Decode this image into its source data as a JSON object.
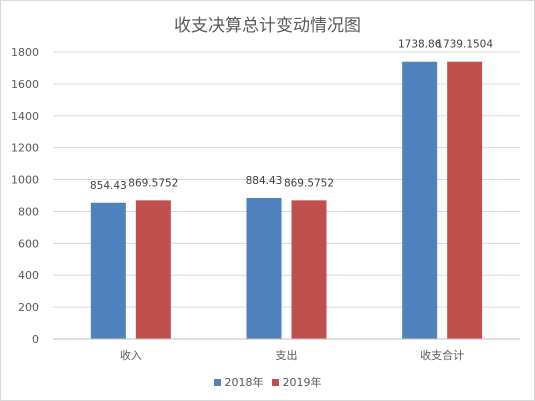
{
  "chart_data": {
    "type": "bar",
    "title": "收支决算总计变动情况图",
    "categories": [
      "收入",
      "支出",
      "收支合计"
    ],
    "series": [
      {
        "name": "2018年",
        "color": "#4F81BD",
        "values": [
          854.43,
          884.43,
          1738.86
        ],
        "value_labels": [
          "854.43",
          "884.43",
          "1738.86"
        ]
      },
      {
        "name": "2019年",
        "color": "#C0504D",
        "values": [
          869.5752,
          869.5752,
          1739.1504
        ],
        "value_labels": [
          "869.5752",
          "869.5752",
          "1739.1504"
        ]
      }
    ],
    "ylim": [
      0,
      1800
    ],
    "yticks": [
      "0",
      "200",
      "400",
      "600",
      "800",
      "1000",
      "1200",
      "1400",
      "1600",
      "1800"
    ],
    "grid": true,
    "legend": "bottom"
  }
}
